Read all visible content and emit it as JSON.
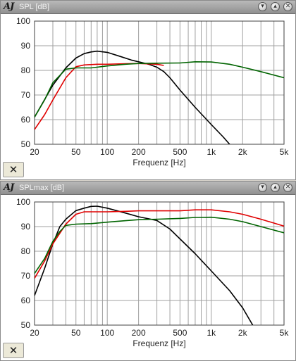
{
  "windows": [
    {
      "logo": "AJ",
      "title": "SPL [dB]",
      "close_symbol": "✕",
      "chart_data": {
        "type": "line",
        "xscale": "log",
        "xlabel": "Frequenz [Hz]",
        "ylabel": "",
        "xlim": [
          20,
          5000
        ],
        "ylim": [
          50,
          100
        ],
        "x_ticks": [
          20,
          50,
          100,
          200,
          500,
          1000,
          2000,
          5000
        ],
        "x_tick_labels": [
          "20",
          "50",
          "100",
          "200",
          "500",
          "1k",
          "2k",
          "5k"
        ],
        "y_ticks": [
          50,
          60,
          70,
          80,
          90,
          100
        ],
        "y_tick_labels": [
          "50",
          "60",
          "70",
          "80",
          "90",
          "100"
        ],
        "grid": true,
        "colors": {
          "red": "#e00000",
          "green": "#006400",
          "black": "#000000",
          "grid": "#a0a0a0"
        },
        "series": [
          {
            "color": "black",
            "points": [
              [
                20,
                61
              ],
              [
                30,
                74
              ],
              [
                40,
                81
              ],
              [
                50,
                85
              ],
              [
                60,
                86.8
              ],
              [
                70,
                87.5
              ],
              [
                80,
                87.8
              ],
              [
                100,
                87.3
              ],
              [
                130,
                85.8
              ],
              [
                170,
                84.2
              ],
              [
                200,
                83.5
              ],
              [
                250,
                82.5
              ],
              [
                300,
                81.3
              ],
              [
                350,
                79.5
              ],
              [
                400,
                77
              ],
              [
                500,
                72
              ],
              [
                700,
                65
              ],
              [
                1000,
                58
              ],
              [
                1300,
                53
              ],
              [
                1500,
                50
              ]
            ]
          },
          {
            "color": "red",
            "points": [
              [
                20,
                56
              ],
              [
                25,
                62
              ],
              [
                30,
                68
              ],
              [
                40,
                77
              ],
              [
                50,
                81.5
              ],
              [
                60,
                82.2
              ],
              [
                80,
                82.5
              ],
              [
                100,
                82.5
              ],
              [
                150,
                82.7
              ],
              [
                200,
                82.8
              ],
              [
                300,
                82.5
              ],
              [
                350,
                82
              ]
            ]
          },
          {
            "color": "green",
            "points": [
              [
                20,
                61
              ],
              [
                25,
                68
              ],
              [
                30,
                75
              ],
              [
                40,
                80.5
              ],
              [
                50,
                81
              ],
              [
                70,
                81
              ],
              [
                100,
                81.8
              ],
              [
                150,
                82.5
              ],
              [
                200,
                82.8
              ],
              [
                300,
                82.9
              ],
              [
                500,
                83
              ],
              [
                700,
                83.5
              ],
              [
                1000,
                83.4
              ],
              [
                1500,
                82.5
              ],
              [
                2000,
                81.3
              ],
              [
                3000,
                79.5
              ],
              [
                5000,
                77
              ]
            ]
          }
        ]
      }
    },
    {
      "logo": "AJ",
      "title": "SPLmax [dB]",
      "close_symbol": "✕",
      "chart_data": {
        "type": "line",
        "xscale": "log",
        "xlabel": "Frequenz [Hz]",
        "ylabel": "",
        "xlim": [
          20,
          5000
        ],
        "ylim": [
          50,
          100
        ],
        "x_ticks": [
          20,
          50,
          100,
          200,
          500,
          1000,
          2000,
          5000
        ],
        "x_tick_labels": [
          "20",
          "50",
          "100",
          "200",
          "500",
          "1k",
          "2k",
          "5k"
        ],
        "y_ticks": [
          50,
          60,
          70,
          80,
          90,
          100
        ],
        "y_tick_labels": [
          "50",
          "60",
          "70",
          "80",
          "90",
          "100"
        ],
        "grid": true,
        "colors": {
          "red": "#e00000",
          "green": "#006400",
          "black": "#000000",
          "grid": "#a0a0a0"
        },
        "series": [
          {
            "color": "black",
            "points": [
              [
                20,
                62
              ],
              [
                25,
                73
              ],
              [
                30,
                83
              ],
              [
                35,
                90
              ],
              [
                40,
                93
              ],
              [
                50,
                96.5
              ],
              [
                60,
                97.5
              ],
              [
                70,
                98.2
              ],
              [
                80,
                98.3
              ],
              [
                100,
                97.5
              ],
              [
                150,
                95.5
              ],
              [
                200,
                94
              ],
              [
                300,
                92.5
              ],
              [
                400,
                89
              ],
              [
                500,
                85
              ],
              [
                700,
                79
              ],
              [
                1000,
                72
              ],
              [
                1500,
                64
              ],
              [
                2000,
                57
              ],
              [
                2500,
                50
              ]
            ]
          },
          {
            "color": "red",
            "points": [
              [
                20,
                69
              ],
              [
                25,
                76
              ],
              [
                30,
                83
              ],
              [
                40,
                91
              ],
              [
                50,
                95
              ],
              [
                60,
                96
              ],
              [
                80,
                96
              ],
              [
                100,
                96
              ],
              [
                150,
                96.2
              ],
              [
                200,
                96.4
              ],
              [
                300,
                96.4
              ],
              [
                500,
                96.4
              ],
              [
                700,
                96.8
              ],
              [
                1000,
                96.8
              ],
              [
                1500,
                96
              ],
              [
                2000,
                95
              ],
              [
                3000,
                93
              ],
              [
                5000,
                90.2
              ]
            ]
          },
          {
            "color": "green",
            "points": [
              [
                20,
                71
              ],
              [
                25,
                77
              ],
              [
                30,
                84
              ],
              [
                35,
                88
              ],
              [
                40,
                90.5
              ],
              [
                50,
                91
              ],
              [
                70,
                91.2
              ],
              [
                100,
                91.8
              ],
              [
                150,
                92.4
              ],
              [
                200,
                92.8
              ],
              [
                300,
                93
              ],
              [
                500,
                93.3
              ],
              [
                700,
                93.7
              ],
              [
                1000,
                93.8
              ],
              [
                1500,
                93
              ],
              [
                2000,
                92
              ],
              [
                3000,
                90
              ],
              [
                5000,
                87.5
              ]
            ]
          }
        ]
      }
    }
  ]
}
